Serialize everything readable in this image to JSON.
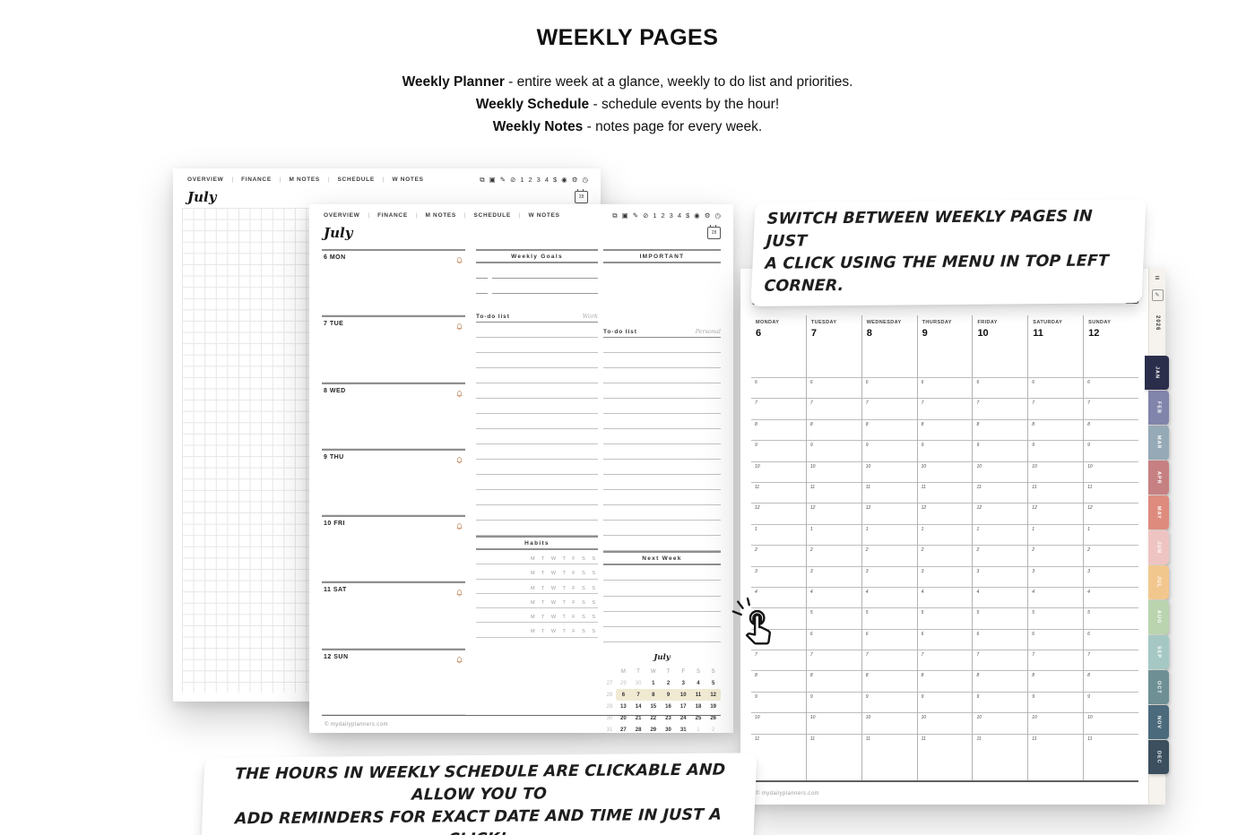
{
  "page": {
    "title": "WEEKLY PAGES",
    "descriptions": [
      {
        "bold": "Weekly Planner",
        "rest": " - entire week at a glance, weekly to do list and priorities."
      },
      {
        "bold": "Weekly Schedule",
        "rest": " - schedule events by the hour!"
      },
      {
        "bold": "Weekly Notes",
        "rest": " - notes page for every week."
      }
    ]
  },
  "annotations": {
    "switch_note": [
      "SWITCH BETWEEN WEEKLY PAGES IN JUST",
      "A CLICK USING THE MENU IN TOP LEFT CORNER."
    ],
    "hours_note": [
      "THE HOURS IN WEEKLY SCHEDULE ARE CLICKABLE AND ALLOW YOU TO",
      "ADD REMINDERS FOR EXACT DATE AND TIME IN JUST A CLICK!"
    ]
  },
  "planner_common": {
    "nav_tabs": [
      "OVERVIEW",
      "FINANCE",
      "M NOTES",
      "SCHEDULE",
      "W NOTES"
    ],
    "nav_separator": "|",
    "toolbar_icons": [
      {
        "name": "bookmark-icon",
        "glyph": "⧉"
      },
      {
        "name": "image-icon",
        "glyph": "▣"
      },
      {
        "name": "pen-icon",
        "glyph": "✎"
      },
      {
        "name": "check-icon",
        "glyph": "⊘"
      },
      {
        "name": "page-1-icon",
        "glyph": "1"
      },
      {
        "name": "page-2-icon",
        "glyph": "2"
      },
      {
        "name": "page-3-icon",
        "glyph": "3"
      },
      {
        "name": "page-4-icon",
        "glyph": "4"
      },
      {
        "name": "dollar-icon",
        "glyph": "$"
      },
      {
        "name": "eye-icon",
        "glyph": "◉"
      },
      {
        "name": "gear-icon",
        "glyph": "⚙"
      },
      {
        "name": "clock-icon",
        "glyph": "◷"
      }
    ],
    "month_title": "July",
    "date_badge": "28",
    "footer": "© mydailyplanners.com",
    "bell_color": "#c0895e"
  },
  "weekly_planner": {
    "days": [
      "6 MON",
      "7 TUE",
      "8 WED",
      "9 THU",
      "10 FRI",
      "11 SAT",
      "12 SUN"
    ],
    "weekly_goals_label": "Weekly Goals",
    "important_label": "IMPORTANT",
    "todo_label": "To-do list",
    "todo_work_tag": "Work",
    "todo_personal_tag": "Personal",
    "habits_label": "Habits",
    "habit_days": "M T W T F S S",
    "habit_rows": 6,
    "goal_rows": 2,
    "todo_line_count": 14,
    "next_week_label": "Next Week",
    "next_week_lines": 5,
    "mini_calendar": {
      "title": "July",
      "day_headers": [
        "M",
        "T",
        "W",
        "T",
        "F",
        "S",
        "S"
      ],
      "highlight_color": "#f1ead3",
      "weeks": [
        {
          "num": "27",
          "highlight": false,
          "days": [
            {
              "t": "29",
              "muted": true
            },
            {
              "t": "30",
              "muted": true
            },
            {
              "t": "1"
            },
            {
              "t": "2"
            },
            {
              "t": "3"
            },
            {
              "t": "4"
            },
            {
              "t": "5"
            }
          ]
        },
        {
          "num": "28",
          "highlight": true,
          "days": [
            {
              "t": "6"
            },
            {
              "t": "7"
            },
            {
              "t": "8"
            },
            {
              "t": "9"
            },
            {
              "t": "10"
            },
            {
              "t": "11"
            },
            {
              "t": "12"
            }
          ]
        },
        {
          "num": "29",
          "highlight": false,
          "days": [
            {
              "t": "13"
            },
            {
              "t": "14"
            },
            {
              "t": "15"
            },
            {
              "t": "16"
            },
            {
              "t": "17"
            },
            {
              "t": "18"
            },
            {
              "t": "19"
            }
          ]
        },
        {
          "num": "30",
          "highlight": false,
          "days": [
            {
              "t": "20"
            },
            {
              "t": "21"
            },
            {
              "t": "22"
            },
            {
              "t": "23"
            },
            {
              "t": "24"
            },
            {
              "t": "25"
            },
            {
              "t": "26"
            }
          ]
        },
        {
          "num": "31",
          "highlight": false,
          "days": [
            {
              "t": "27"
            },
            {
              "t": "28"
            },
            {
              "t": "29"
            },
            {
              "t": "30"
            },
            {
              "t": "31"
            },
            {
              "t": "1",
              "muted": true
            },
            {
              "t": "2",
              "muted": true
            }
          ]
        }
      ]
    }
  },
  "weekly_schedule": {
    "day_columns": [
      {
        "name": "MONDAY",
        "date": "6"
      },
      {
        "name": "TUESDAY",
        "date": "7"
      },
      {
        "name": "WEDNESDAY",
        "date": "8"
      },
      {
        "name": "THURSDAY",
        "date": "9"
      },
      {
        "name": "FRIDAY",
        "date": "10"
      },
      {
        "name": "SATURDAY",
        "date": "11"
      },
      {
        "name": "SUNDAY",
        "date": "12"
      }
    ],
    "hours": [
      "6",
      "7",
      "8",
      "9",
      "10",
      "11",
      "12",
      "1",
      "2",
      "3",
      "4",
      "5",
      "6",
      "7",
      "8",
      "9",
      "10",
      "11"
    ],
    "sidebar": {
      "year": "2026",
      "menu_icon": "≡",
      "edit_icon": "✎",
      "months": [
        {
          "label": "JAN",
          "color": "#2b2e4b",
          "active": true
        },
        {
          "label": "FEB",
          "color": "#8184ab"
        },
        {
          "label": "MAR",
          "color": "#95a9b6"
        },
        {
          "label": "APR",
          "color": "#c68082"
        },
        {
          "label": "MAY",
          "color": "#de8b7e"
        },
        {
          "label": "JUN",
          "color": "#eec4c2"
        },
        {
          "label": "JUL",
          "color": "#f2c78e"
        },
        {
          "label": "AUG",
          "color": "#bad4af"
        },
        {
          "label": "SEP",
          "color": "#a5c8c4"
        },
        {
          "label": "OCT",
          "color": "#6e9095"
        },
        {
          "label": "NOV",
          "color": "#4b6a7b"
        },
        {
          "label": "DEC",
          "color": "#3b4f5e"
        }
      ]
    }
  }
}
